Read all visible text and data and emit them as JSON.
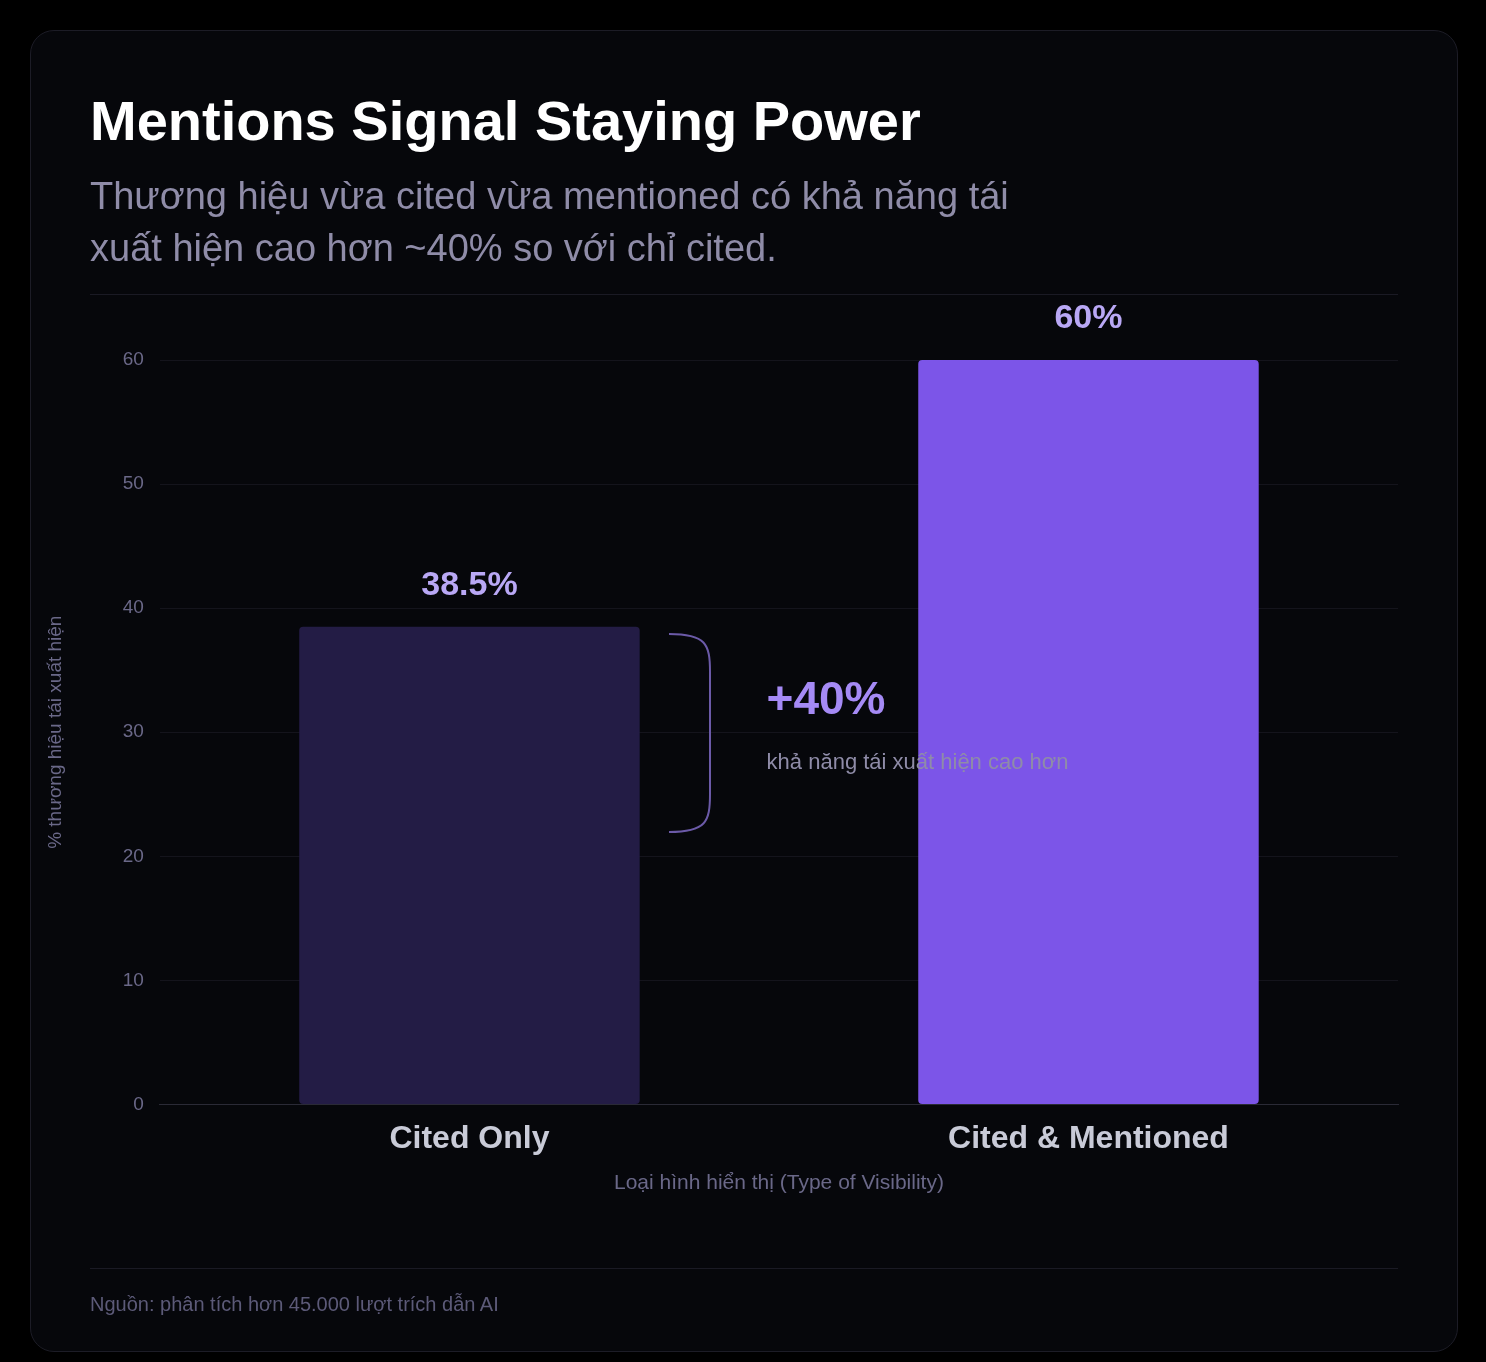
{
  "chart_data": {
    "type": "bar",
    "title": "Mentions Signal Staying Power",
    "subtitle": "Thương hiệu vừa cited vừa mentioned có khả năng tái xuất hiện cao hơn ~40% so với chỉ cited.",
    "xlabel": "Loại hình hiển thị (Type of Visibility)",
    "ylabel": "% thương hiệu tái xuất hiện",
    "categories": [
      "Cited Only",
      "Cited & Mentioned"
    ],
    "values": [
      38.5,
      60
    ],
    "colors": [
      "#231c45",
      "#7c55e8"
    ],
    "value_labels": [
      "38.5%",
      "60%"
    ],
    "ylim": [
      0,
      60
    ],
    "yticks": [
      0,
      10,
      20,
      30,
      40,
      50,
      60
    ],
    "grid": "y",
    "annotations": [
      "+40%",
      "khả năng tái xuất hiện cao hơn",
      "Nguồn: phân tích hơn 45.000 lượt trích dẫn AI"
    ]
  }
}
